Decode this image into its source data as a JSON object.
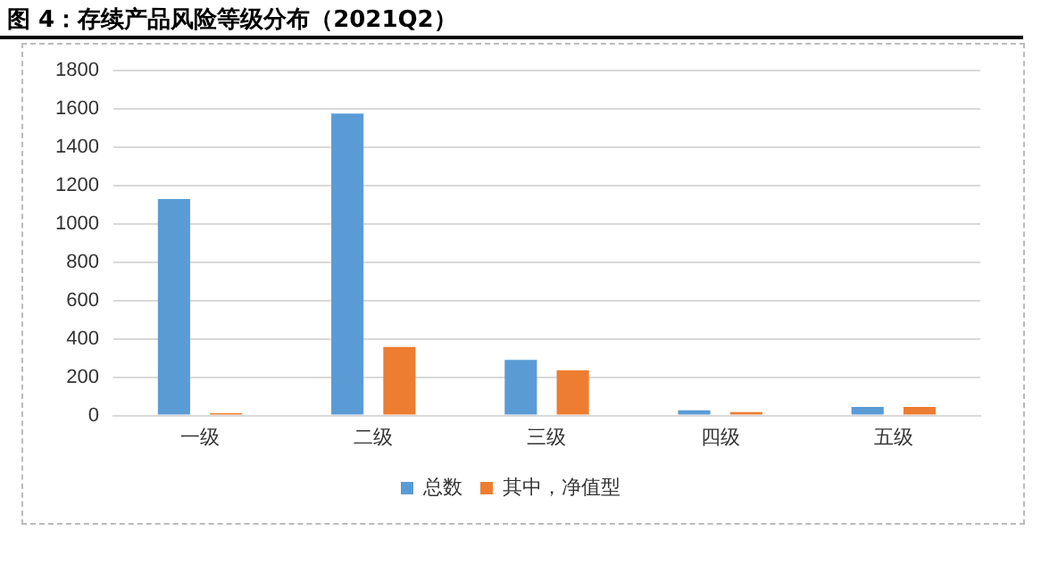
{
  "chart_data": {
    "type": "bar",
    "title": "图 4：存续产品风险等级分布（2021Q2）",
    "categories": [
      "一级",
      "二级",
      "三级",
      "四级",
      "五级"
    ],
    "series": [
      {
        "name": "总数",
        "color": "#5b9bd5",
        "values": [
          1130,
          1576,
          291,
          27,
          45
        ]
      },
      {
        "name": "其中，净值型",
        "color": "#ed7d31",
        "values": [
          12,
          358,
          236,
          18,
          45
        ]
      }
    ],
    "ylim": [
      0,
      1800
    ],
    "yticks": [
      0,
      200,
      400,
      600,
      800,
      1000,
      1200,
      1400,
      1600,
      1800
    ],
    "grid": "y",
    "legend": "bottom"
  }
}
